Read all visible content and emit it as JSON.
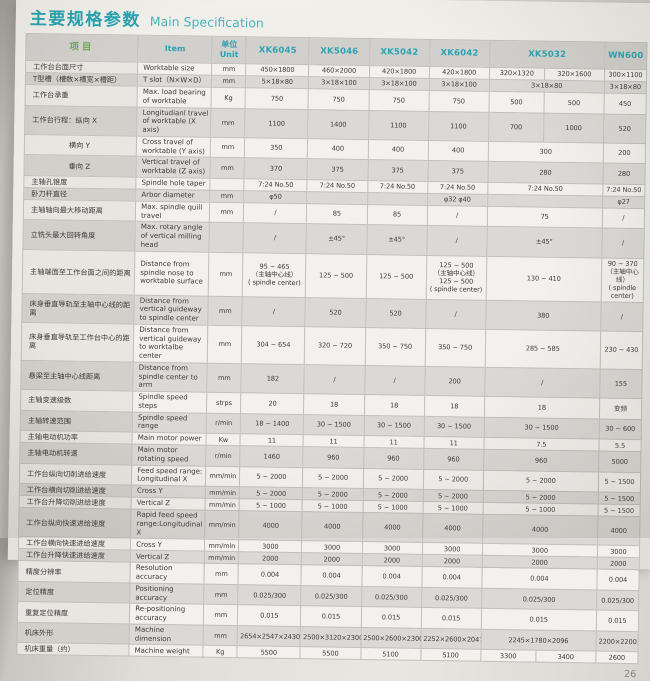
{
  "title": {
    "cn": "主要规格参数",
    "en": "Main Specification"
  },
  "page_number": "26",
  "colors": {
    "accent_teal": "#2ba4b2",
    "header_green": "#74a65a",
    "header_bg": "#d2d0cc",
    "row_light": "#f3f1ed",
    "row_gray": "#dbd9d5"
  },
  "table": {
    "headers": {
      "item_cn": "项目",
      "item_en": "Item",
      "unit": "单位\nUnit",
      "models": [
        {
          "label": "XK6045",
          "colspan": 1
        },
        {
          "label": "XK5046",
          "colspan": 1
        },
        {
          "label": "XK5042",
          "colspan": 1
        },
        {
          "label": "XK6042",
          "colspan": 1
        },
        {
          "label": "XK5032",
          "colspan": 2
        },
        {
          "label": "WN600",
          "colspan": 1
        }
      ]
    },
    "rows": [
      {
        "cn": "工作台台面尺寸",
        "en": "Worktable size",
        "unit": "mm",
        "values": [
          "450×1800",
          "460×2000",
          "420×1800",
          "420×1800",
          "320×1320",
          "320×1600",
          "300×1100"
        ]
      },
      {
        "cn": "T型槽（槽数×槽宽×槽距）",
        "en": "T slot（N×W×D）",
        "unit": "mm",
        "values": [
          "5×18×80",
          "3×18×100",
          "3×18×100",
          "3×18×100",
          "3×18×80",
          "3×18×80"
        ]
      },
      {
        "cn": "工作台承重",
        "en": "Max. load bearing of worktable",
        "unit": "Kg",
        "values": [
          "750",
          "750",
          "750",
          "750",
          "500",
          "500",
          "450"
        ]
      },
      {
        "cn": "工作台行程：纵向 X",
        "en": "Longitudianl travel of worktable (X axis)",
        "unit": "mm",
        "values": [
          "1100",
          "1400",
          "1100",
          "1100",
          "700",
          "1000",
          "520"
        ]
      },
      {
        "cn": "横向 Y",
        "indent": true,
        "en": "Cross travel of worktable (Y axis)",
        "unit": "mm",
        "values": [
          "350",
          "400",
          "400",
          "400",
          "300",
          "200"
        ]
      },
      {
        "cn": "垂向 Z",
        "indent": true,
        "en": "Vertical travel of worktable (Z axis)",
        "unit": "mm",
        "values": [
          "370",
          "375",
          "375",
          "375",
          "280",
          "280"
        ]
      },
      {
        "cn": "主轴孔锥度",
        "en": "Spindle hole taper",
        "unit": "",
        "values": [
          "7:24 No.50",
          "7:24 No.50",
          "7:24 No.50",
          "7:24 No.50",
          "7:24 No.50",
          "7:24 No.50"
        ]
      },
      {
        "cn": "卧刀杆直径",
        "en": "Arbor diameter",
        "unit": "mm",
        "values": [
          "φ50",
          "",
          "",
          "φ32 φ40",
          "",
          "φ27"
        ]
      },
      {
        "cn": "主轴轴向最大移动距离",
        "en": "Max. spindle quill travel",
        "unit": "mm",
        "values": [
          "/",
          "85",
          "85",
          "/",
          "75",
          "/"
        ]
      },
      {
        "cn": "立铣头最大回转角度",
        "en": "Max. rotary angle of vertical milling head",
        "unit": "",
        "values": [
          "/",
          "±45°",
          "±45°",
          "/",
          "±45°",
          "/"
        ]
      },
      {
        "cn": "主轴端面至工作台面之间的距离",
        "en": "Distance from spindle nose to worktable surface",
        "unit": "mm",
        "values": [
          "95 ~ 465\n（主轴中心线）\n( spindle center)",
          "125 ~ 500",
          "125 ~ 500",
          "125 ~ 500\n（主轴中心线）\n125 ~ 500\n( spindle center)",
          "130 ~ 410",
          "90 ~ 370\n（主轴中心线）\n( spindle center)"
        ]
      },
      {
        "cn": "床身垂直导轨至主轴中心线的距离",
        "en": "Distance from vertical guideway to spindle center",
        "unit": "mm",
        "values": [
          "/",
          "520",
          "520",
          "/",
          "380",
          "/"
        ]
      },
      {
        "cn": "床身垂直导轨至工作台中心的距离",
        "en": "Distance from vertical guideway to worktalbe center",
        "unit": "mm",
        "values": [
          "304 ~ 654",
          "320 ~ 720",
          "350 ~ 750",
          "350 ~ 750",
          "285 ~ 585",
          "230 ~ 430"
        ]
      },
      {
        "cn": "悬梁至主轴中心线距离",
        "en": "Distance from spindle center to arm",
        "unit": "mm",
        "values": [
          "182",
          "/",
          "/",
          "200",
          "/",
          "155"
        ]
      },
      {
        "cn": "主轴变速级数",
        "en": "Spindle speed steps",
        "unit": "strps",
        "values": [
          "20",
          "18",
          "18",
          "18",
          "18",
          "变频"
        ]
      },
      {
        "cn": "主轴转速范围",
        "en": "Spindle speed range",
        "unit": "r/min",
        "values": [
          "18 ~ 1400",
          "30 ~ 1500",
          "30 ~ 1500",
          "30 ~ 1500",
          "30 ~ 1500",
          "30 ~ 600"
        ]
      },
      {
        "cn": "主轴电动机功率",
        "en": "Main motor power",
        "unit": "Kw",
        "values": [
          "11",
          "11",
          "11",
          "11",
          "7.5",
          "5.5"
        ]
      },
      {
        "cn": "主轴电动机转速",
        "en": "Main motor rotating speed",
        "unit": "r/min",
        "values": [
          "1460",
          "960",
          "960",
          "960",
          "960",
          "5000"
        ]
      },
      {
        "cn": "工作台纵向切削进给速度",
        "en": "Feed speed range: Longitudinal X",
        "unit": "mm/min",
        "values": [
          "5 ~ 2000",
          "5 ~ 2000",
          "5 ~ 2000",
          "5 ~ 2000",
          "5 ~ 2000",
          "5 ~ 1500"
        ]
      },
      {
        "cn": "工作台横向切削进给速度",
        "en": "Cross Y",
        "unit": "mm/min",
        "values": [
          "5 ~ 2000",
          "5 ~ 2000",
          "5 ~ 2000",
          "5 ~ 2000",
          "5 ~ 2000",
          "5 ~ 1500"
        ]
      },
      {
        "cn": "工作台升降切削进给速度",
        "en": "Vertical Z",
        "unit": "mm/min",
        "values": [
          "5 ~ 1000",
          "5 ~ 1000",
          "5 ~ 1000",
          "5 ~ 1000",
          "5 ~ 1000",
          "5 ~ 1500"
        ]
      },
      {
        "cn": "工作台纵向快速进给速度",
        "en": "Rapid feed speed range:Longitudinal X",
        "unit": "mm/min",
        "values": [
          "4000",
          "4000",
          "4000",
          "4000",
          "4000",
          "4000"
        ]
      },
      {
        "cn": "工作台横向快速进给速度",
        "en": "Cross Y",
        "unit": "mm/min",
        "values": [
          "3000",
          "3000",
          "3000",
          "3000",
          "3000",
          "3000"
        ]
      },
      {
        "cn": "工作台升降快速进给速度",
        "en": "Vertical Z",
        "unit": "mm/min",
        "values": [
          "2000",
          "2000",
          "2000",
          "2000",
          "2000",
          "2000"
        ]
      },
      {
        "cn": "精度分辨率",
        "en": "Resolution accuracy",
        "unit": "mm",
        "values": [
          "0.004",
          "0.004",
          "0.004",
          "0.004",
          "0.004",
          "0.004"
        ]
      },
      {
        "cn": "定位精度",
        "en": "Positioning accuracy",
        "unit": "mm",
        "values": [
          "0.025/300",
          "0.025/300",
          "0.025/300",
          "0.025/300",
          "0.025/300",
          "0.025/300"
        ]
      },
      {
        "cn": "重复定位精度",
        "en": "Re-positioning accuracy",
        "unit": "mm",
        "values": [
          "0.015",
          "0.015",
          "0.015",
          "0.015",
          "0.015",
          "0.015"
        ]
      },
      {
        "cn": "机床外形",
        "en": "Machine dimension",
        "unit": "mm",
        "values": [
          "2654×2547×2430",
          "2500×3120×2300",
          "2500×2600×2300",
          "2252×2600×2047",
          "2245×1780×2096",
          "2200×2200×1720"
        ]
      },
      {
        "cn": "机床重量（约）",
        "en": "Machine weight",
        "unit": "Kg",
        "values": [
          "5500",
          "5500",
          "5100",
          "5100",
          "3300",
          "3400",
          "2600"
        ]
      }
    ]
  }
}
